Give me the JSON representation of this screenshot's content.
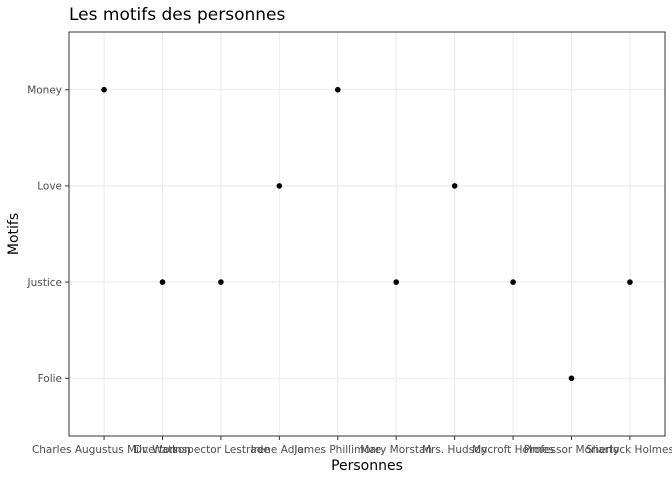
{
  "chart_data": {
    "type": "scatter",
    "title": "Les motifs des personnes",
    "xlabel": "Personnes",
    "ylabel": "Motifs",
    "x_categories": [
      "Charles Augustus Milverton",
      "Dr. Watson",
      "Inspector Lestrade",
      "Irene Adler",
      "James Phillimore",
      "Mary Morstan",
      "Mrs. Hudson",
      "Mycroft Holmes",
      "Professor Moriarty",
      "Sherlock Holmes"
    ],
    "y_categories": [
      "Folie",
      "Justice",
      "Love",
      "Money"
    ],
    "points": [
      {
        "x": "Charles Augustus Milverton",
        "y": "Money"
      },
      {
        "x": "Dr. Watson",
        "y": "Justice"
      },
      {
        "x": "Inspector Lestrade",
        "y": "Justice"
      },
      {
        "x": "Irene Adler",
        "y": "Love"
      },
      {
        "x": "James Phillimore",
        "y": "Money"
      },
      {
        "x": "Mary Morstan",
        "y": "Justice"
      },
      {
        "x": "Mrs. Hudson",
        "y": "Love"
      },
      {
        "x": "Mycroft Holmes",
        "y": "Justice"
      },
      {
        "x": "Professor Moriarty",
        "y": "Folie"
      },
      {
        "x": "Sherlock Holmes",
        "y": "Justice"
      }
    ],
    "grid": true,
    "legend": "none",
    "point_color": "#000000",
    "panel_background": "#ffffff",
    "grid_color": "#ebebeb"
  }
}
